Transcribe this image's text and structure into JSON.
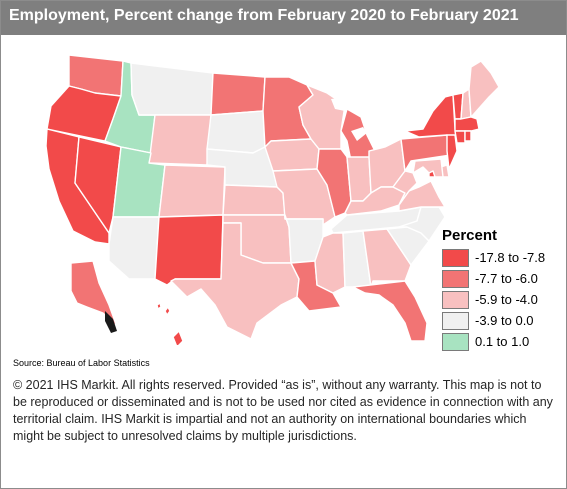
{
  "title": "Employment, Percent change from February 2020 to February 2021",
  "legend": {
    "title": "Percent",
    "items": [
      {
        "label": "-17.8 to -7.8",
        "color": "#f24a4a"
      },
      {
        "label": "-7.7 to -6.0",
        "color": "#f27474"
      },
      {
        "label": "-5.9 to -4.0",
        "color": "#f8c0c0"
      },
      {
        "label": "-3.9 to 0.0",
        "color": "#f0f0f0"
      },
      {
        "label": "0.1 to 1.0",
        "color": "#a8e3c1"
      }
    ]
  },
  "states": [
    {
      "name": "WA",
      "class": 1
    },
    {
      "name": "OR",
      "class": 0
    },
    {
      "name": "CA",
      "class": 0
    },
    {
      "name": "NV",
      "class": 0
    },
    {
      "name": "ID",
      "class": 4
    },
    {
      "name": "MT",
      "class": 3
    },
    {
      "name": "WY",
      "class": 2
    },
    {
      "name": "UT",
      "class": 4
    },
    {
      "name": "AZ",
      "class": 3
    },
    {
      "name": "CO",
      "class": 2
    },
    {
      "name": "NM",
      "class": 0
    },
    {
      "name": "ND",
      "class": 1
    },
    {
      "name": "SD",
      "class": 3
    },
    {
      "name": "NE",
      "class": 3
    },
    {
      "name": "KS",
      "class": 2
    },
    {
      "name": "OK",
      "class": 2
    },
    {
      "name": "TX",
      "class": 2
    },
    {
      "name": "MN",
      "class": 1
    },
    {
      "name": "IA",
      "class": 2
    },
    {
      "name": "MO",
      "class": 2
    },
    {
      "name": "AR",
      "class": 3
    },
    {
      "name": "LA",
      "class": 1
    },
    {
      "name": "WI",
      "class": 2
    },
    {
      "name": "IL",
      "class": 1
    },
    {
      "name": "MI",
      "class": 1
    },
    {
      "name": "IN",
      "class": 2
    },
    {
      "name": "OH",
      "class": 2
    },
    {
      "name": "KY",
      "class": 2
    },
    {
      "name": "TN",
      "class": 3
    },
    {
      "name": "MS",
      "class": 2
    },
    {
      "name": "AL",
      "class": 3
    },
    {
      "name": "GA",
      "class": 2
    },
    {
      "name": "FL",
      "class": 1
    },
    {
      "name": "SC",
      "class": 3
    },
    {
      "name": "NC",
      "class": 3
    },
    {
      "name": "VA",
      "class": 2
    },
    {
      "name": "WV",
      "class": 2
    },
    {
      "name": "PA",
      "class": 1
    },
    {
      "name": "NY",
      "class": 0
    },
    {
      "name": "VT",
      "class": 0
    },
    {
      "name": "NH",
      "class": 2
    },
    {
      "name": "ME",
      "class": 2
    },
    {
      "name": "MA",
      "class": 0
    },
    {
      "name": "CT",
      "class": 0
    },
    {
      "name": "RI",
      "class": 0
    },
    {
      "name": "NJ",
      "class": 0
    },
    {
      "name": "DE",
      "class": 2
    },
    {
      "name": "MD",
      "class": 2
    },
    {
      "name": "DC",
      "class": 0
    },
    {
      "name": "AK",
      "class": 1
    },
    {
      "name": "HI",
      "class": 0
    }
  ],
  "source": "Source: Bureau of Labor Statistics",
  "notice": "© 2021 IHS Markit. All rights reserved. Provided “as is”, without any warranty. This map is not to be reproduced or disseminated and is not to be used nor cited as evidence in connection with any territorial claim. IHS Markit is impartial and not an authority on international boundaries which might be subject to unresolved claims by multiple jurisdictions."
}
